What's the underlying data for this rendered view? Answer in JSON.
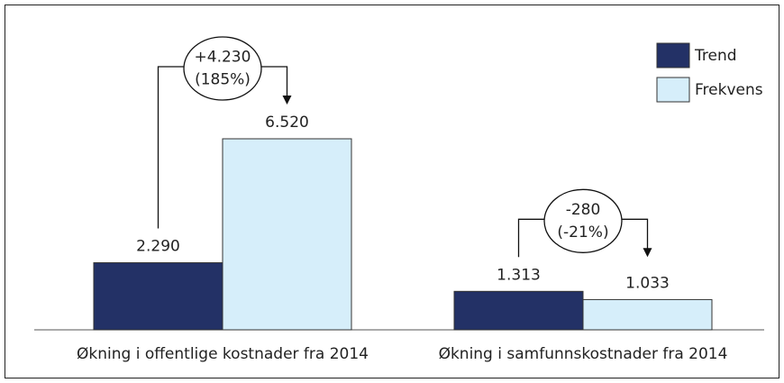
{
  "chart_data": {
    "type": "bar",
    "categories": [
      "Økning i offentlige kostnader fra 2014",
      "Økning i samfunnskostnader fra 2014"
    ],
    "series": [
      {
        "name": "Trend",
        "color": "#233166",
        "values": [
          2290,
          1313
        ],
        "value_labels": [
          "2.290",
          "1.313"
        ]
      },
      {
        "name": "Frekvens",
        "color": "#d6eefa",
        "values": [
          6520,
          1033
        ],
        "value_labels": [
          "6.520",
          "1.033"
        ]
      }
    ],
    "annotations": [
      [
        "+4.230",
        "(185%)"
      ],
      [
        "-280",
        "(-21%)"
      ]
    ],
    "legend": "top-right"
  }
}
